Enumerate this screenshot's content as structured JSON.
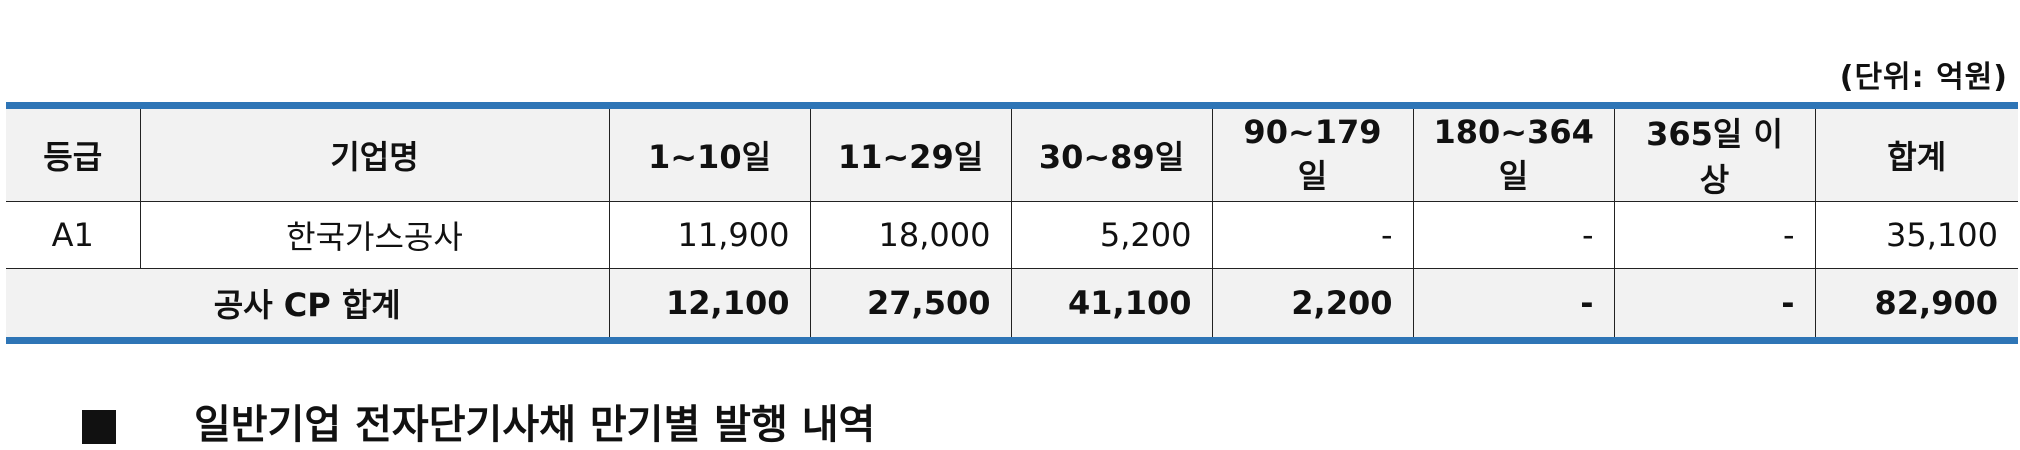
{
  "unit_note": "(단위: 억원)",
  "table": {
    "headers": [
      "등급",
      "기업명",
      "1~10일",
      "11~29일",
      "30~89일",
      "90~179일",
      "180~364일",
      "365일 이상",
      "합계"
    ],
    "rows": [
      {
        "grade": "A1",
        "company": "한국가스공사",
        "values": [
          "11,900",
          "18,000",
          "5,200",
          "-",
          "-",
          "-",
          "35,100"
        ]
      }
    ],
    "total": {
      "label": "공사 CP 합계",
      "values": [
        "12,100",
        "27,500",
        "41,100",
        "2,200",
        "-",
        "-",
        "82,900"
      ]
    }
  },
  "section_heading": "일반기업 전자단기사채 만기별 발행 내역",
  "colors": {
    "accent_border": "#2e75b6",
    "header_bg": "#f2f2f2"
  }
}
